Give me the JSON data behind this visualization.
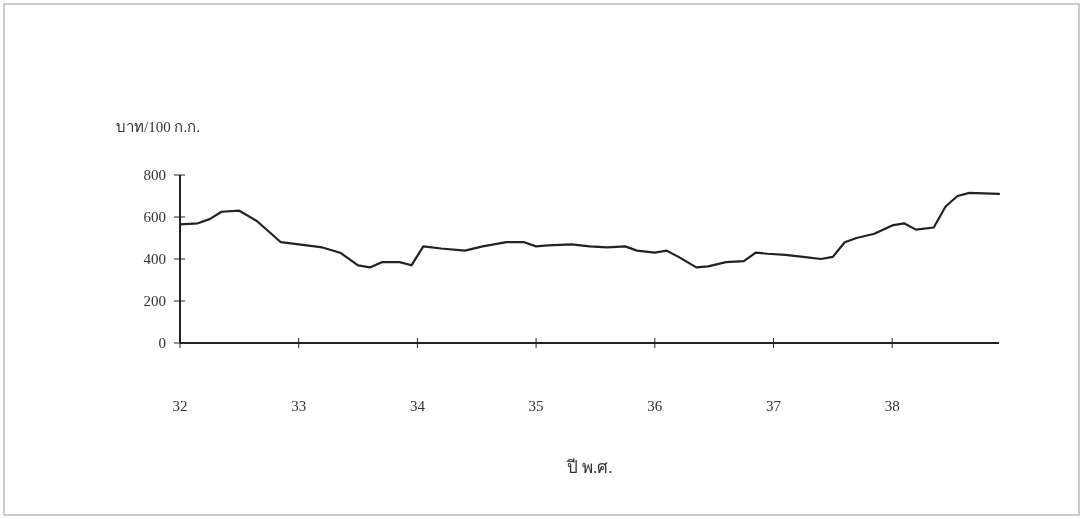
{
  "chart_data": {
    "type": "line",
    "ylabel": "บาท/100 ก.ก.",
    "xlabel": "ปี พ.ศ.",
    "xlim": [
      32,
      38.9
    ],
    "xticks": [
      32,
      33,
      34,
      35,
      36,
      37,
      38
    ],
    "ylim": [
      0,
      800
    ],
    "yticks": [
      0,
      200,
      400,
      600,
      800
    ],
    "marker": "none",
    "line_style": "solid",
    "series": [
      {
        "color": "#222222",
        "x": [
          32,
          32.15,
          32.25,
          32.35,
          32.5,
          32.65,
          32.85,
          33.0,
          33.2,
          33.35,
          33.5,
          33.6,
          33.7,
          33.85,
          33.95,
          34.05,
          34.2,
          34.4,
          34.55,
          34.75,
          34.9,
          35.0,
          35.1,
          35.3,
          35.45,
          35.6,
          35.75,
          35.85,
          36.0,
          36.1,
          36.2,
          36.35,
          36.45,
          36.6,
          36.75,
          36.85,
          36.95,
          37.1,
          37.25,
          37.4,
          37.5,
          37.6,
          37.7,
          37.85,
          38.0,
          38.1,
          38.2,
          38.35,
          38.45,
          38.55,
          38.65,
          38.9
        ],
        "values": [
          565,
          570,
          590,
          625,
          630,
          580,
          480,
          470,
          455,
          430,
          370,
          360,
          385,
          385,
          370,
          460,
          450,
          440,
          460,
          480,
          480,
          460,
          465,
          470,
          460,
          455,
          460,
          440,
          430,
          440,
          410,
          360,
          365,
          385,
          390,
          430,
          425,
          420,
          410,
          400,
          410,
          480,
          500,
          520,
          560,
          570,
          540,
          550,
          650,
          700,
          715,
          710
        ]
      }
    ]
  }
}
